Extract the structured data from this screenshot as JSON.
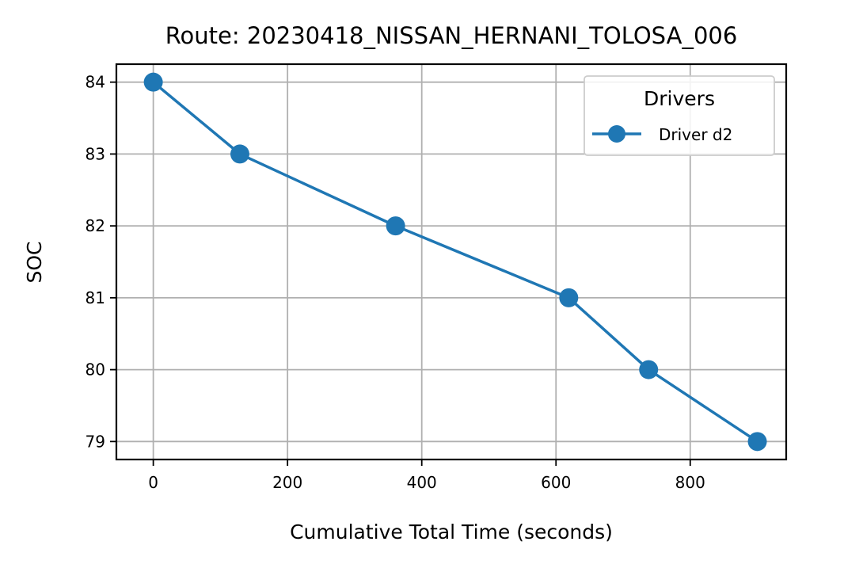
{
  "chart_data": {
    "type": "line",
    "title": "Route: 20230418_NISSAN_HERNANI_TOLOSA_006",
    "xlabel": "Cumulative Total Time (seconds)",
    "ylabel": "SOC",
    "xlim": [
      -55,
      943
    ],
    "ylim": [
      78.75,
      84.25
    ],
    "xticks": [
      0,
      200,
      400,
      600,
      800
    ],
    "yticks": [
      79,
      80,
      81,
      82,
      83,
      84
    ],
    "grid": true,
    "legend": {
      "title": "Drivers",
      "position": "top-right"
    },
    "series": [
      {
        "name": "Driver d2",
        "color": "#1f77b4",
        "marker": "circle",
        "x": [
          0,
          129,
          361,
          619,
          738,
          900
        ],
        "y": [
          84,
          83,
          82,
          81,
          80,
          79
        ]
      }
    ]
  }
}
